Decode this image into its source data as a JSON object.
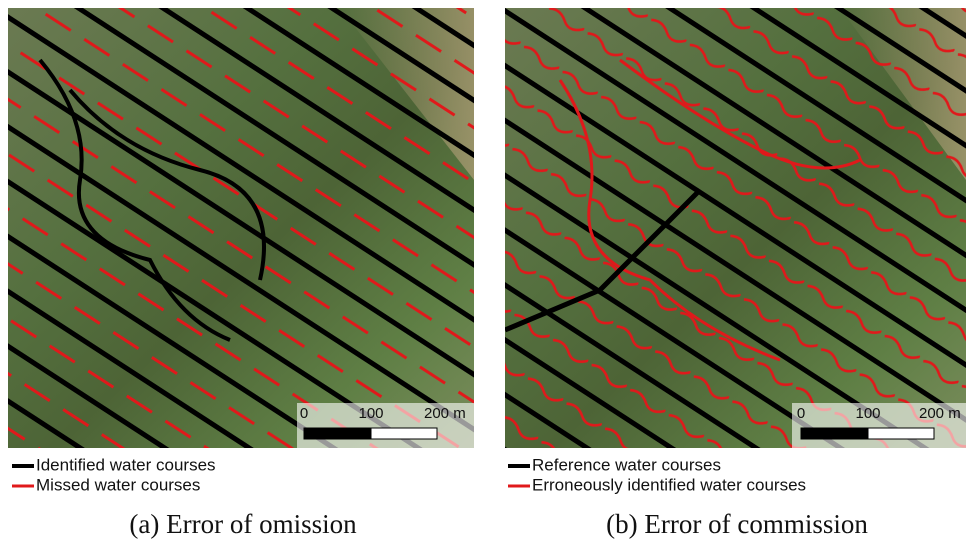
{
  "panels": [
    {
      "scale_bar": {
        "labels": [
          "0",
          "100",
          "200 m"
        ]
      },
      "legend": [
        "Identified water courses",
        "Missed water courses"
      ],
      "caption": "(a) Error of omission"
    },
    {
      "scale_bar": {
        "labels": [
          "0",
          "100",
          "200 m"
        ]
      },
      "legend": [
        "Reference water courses",
        "Erroneously identified water courses"
      ],
      "caption": "(b) Error of commission"
    }
  ]
}
